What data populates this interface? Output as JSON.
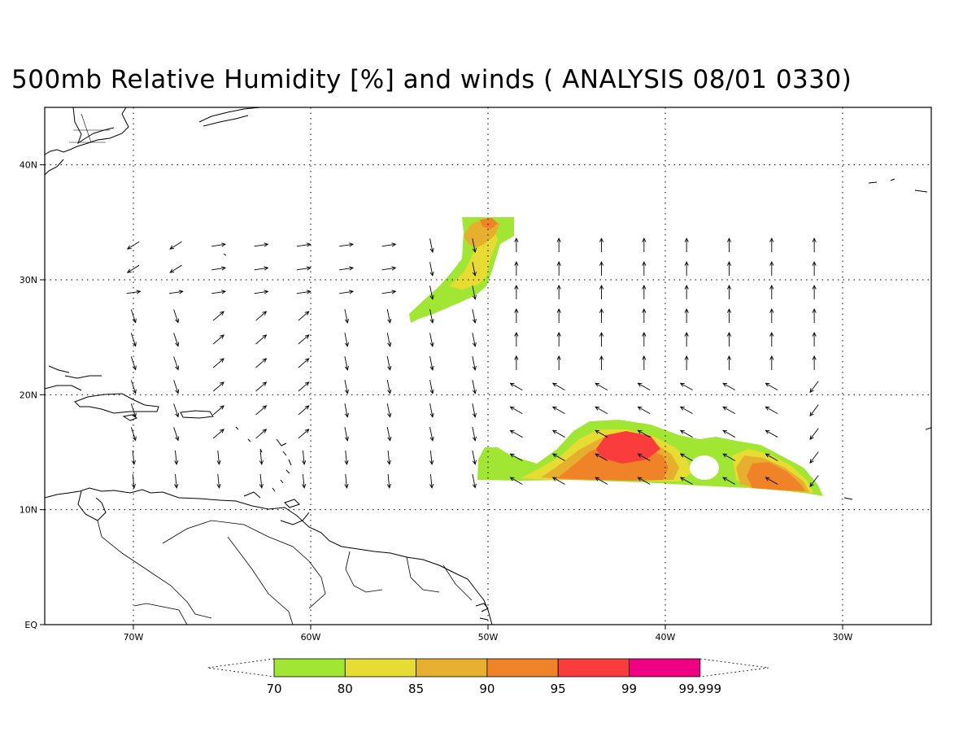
{
  "title": "500mb Relative Humidity [%] and winds ( ANALYSIS 08/01 0330)",
  "map": {
    "lon_range": [
      -75,
      -25
    ],
    "lat_range": [
      0,
      45
    ],
    "x_ticks": [
      {
        "lon": -70,
        "label": "70W"
      },
      {
        "lon": -60,
        "label": "60W"
      },
      {
        "lon": -50,
        "label": "50W"
      },
      {
        "lon": -40,
        "label": "40W"
      },
      {
        "lon": -30,
        "label": "30W"
      }
    ],
    "y_ticks": [
      {
        "lat": 0,
        "label": "EQ"
      },
      {
        "lat": 10,
        "label": "10N"
      },
      {
        "lat": 20,
        "label": "20N"
      },
      {
        "lat": 30,
        "label": "30N"
      },
      {
        "lat": 40,
        "label": "40N"
      }
    ],
    "grid": "dotted"
  },
  "colorbar": {
    "levels": [
      "70",
      "80",
      "85",
      "90",
      "95",
      "99",
      "99.999"
    ],
    "colors": [
      "#a0e632",
      "#e6dc32",
      "#e6af2d",
      "#f08228",
      "#fa3c3c",
      "#f00082"
    ]
  },
  "humidity_colors": {
    "c70": "#a0e632",
    "c80": "#e6dc32",
    "c85": "#e6af2d",
    "c90": "#f08228",
    "c95": "#fa3c3c"
  }
}
